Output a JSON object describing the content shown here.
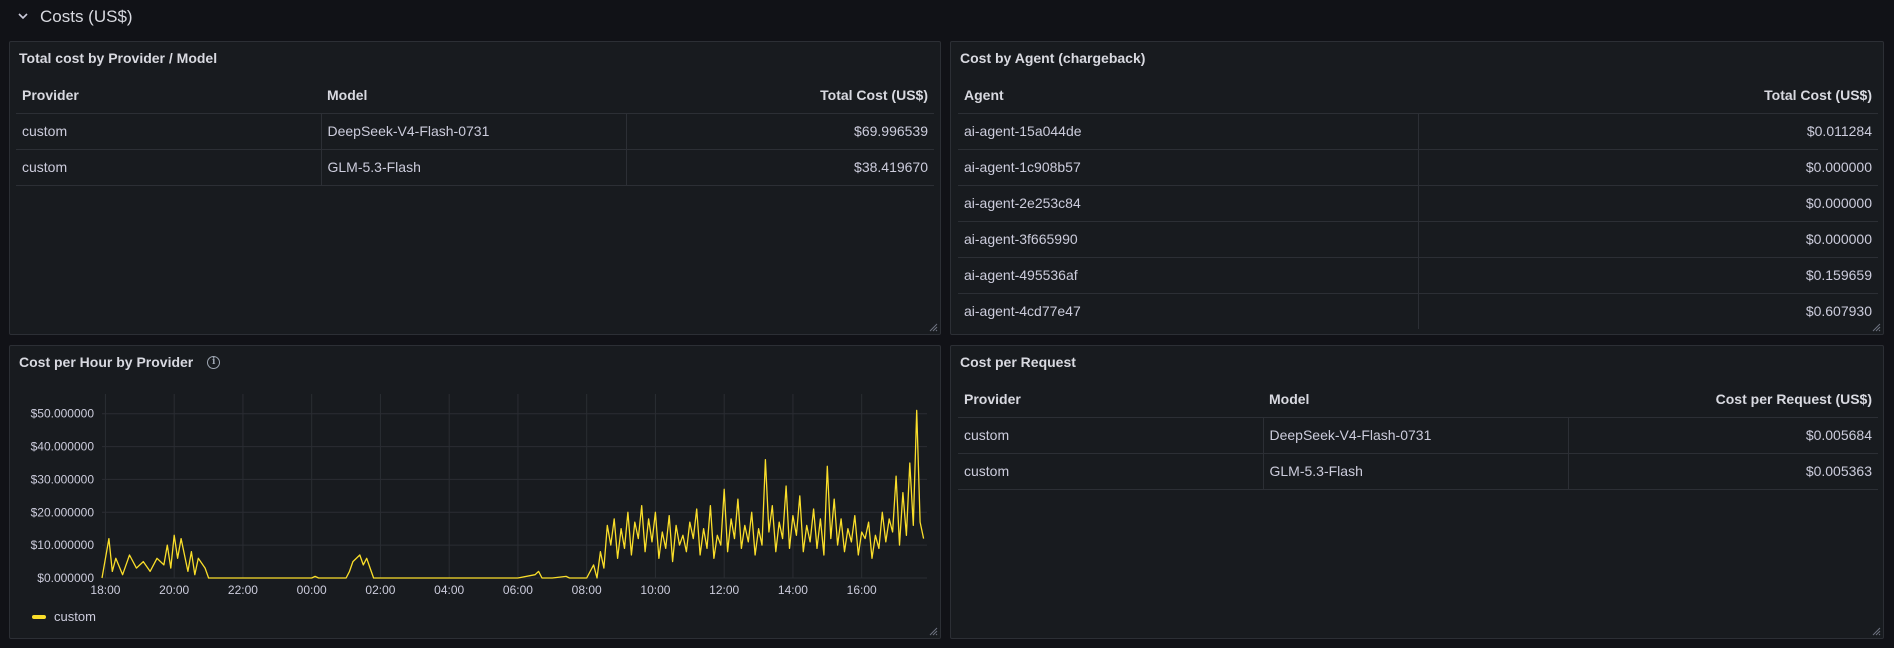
{
  "row": {
    "title": "Costs (US$)"
  },
  "colors": {
    "series": "#fade2a",
    "panel_bg": "#181b1f",
    "page_bg": "#111217"
  },
  "icons": {
    "row_toggle": "chevron-down-icon",
    "info": "info-icon",
    "resize": "resize-handle-icon"
  },
  "cost_provider_model": {
    "title": "Total cost by Provider / Model",
    "headers": [
      "Provider",
      "Model",
      "Total Cost (US$)"
    ],
    "rows": [
      [
        "custom",
        "DeepSeek-V4-Flash-0731",
        "$69.996539"
      ],
      [
        "custom",
        "GLM-5.3-Flash",
        "$38.419670"
      ]
    ]
  },
  "cost_agent": {
    "title": "Cost by Agent (chargeback)",
    "headers": [
      "Agent",
      "Total Cost (US$)"
    ],
    "rows": [
      [
        "ai-agent-15a044de",
        "$0.011284"
      ],
      [
        "ai-agent-1c908b57",
        "$0.000000"
      ],
      [
        "ai-agent-2e253c84",
        "$0.000000"
      ],
      [
        "ai-agent-3f665990",
        "$0.000000"
      ],
      [
        "ai-agent-495536af",
        "$0.159659"
      ],
      [
        "ai-agent-4cd77e47",
        "$0.607930"
      ]
    ]
  },
  "cost_per_hour": {
    "title": "Cost per Hour by Provider",
    "legend": "custom"
  },
  "cost_per_request": {
    "title": "Cost per Request",
    "headers": [
      "Provider",
      "Model",
      "Cost per Request (US$)"
    ],
    "rows": [
      [
        "custom",
        "DeepSeek-V4-Flash-0731",
        "$0.005684"
      ],
      [
        "custom",
        "GLM-5.3-Flash",
        "$0.005363"
      ]
    ]
  },
  "chart_data": {
    "type": "line",
    "title": "Cost per Hour by Provider",
    "xlabel": "",
    "ylabel": "",
    "x_ticks": [
      "18:00",
      "20:00",
      "22:00",
      "00:00",
      "02:00",
      "04:00",
      "06:00",
      "08:00",
      "10:00",
      "12:00",
      "14:00",
      "16:00"
    ],
    "y_ticks": [
      "$0.000000",
      "$10.000000",
      "$20.000000",
      "$30.000000",
      "$40.000000",
      "$50.000000"
    ],
    "xlim": [
      17.9,
      41.9
    ],
    "ylim": [
      0,
      56
    ],
    "grid": true,
    "legend_position": "bottom-left",
    "series": [
      {
        "name": "custom",
        "color": "#fade2a",
        "x": [
          17.9,
          18.1,
          18.2,
          18.3,
          18.5,
          18.7,
          18.9,
          19.1,
          19.3,
          19.5,
          19.7,
          19.8,
          19.9,
          20.0,
          20.1,
          20.2,
          20.4,
          20.5,
          20.6,
          20.7,
          20.9,
          21.0,
          21.5,
          22.0,
          23.0,
          24.0,
          24.1,
          24.2,
          25.0,
          25.1,
          25.2,
          25.4,
          25.5,
          25.6,
          25.7,
          25.8,
          26.0,
          27.0,
          28.0,
          29.0,
          30.0,
          30.5,
          30.6,
          30.7,
          31.0,
          31.4,
          31.5,
          31.6,
          32.0,
          32.2,
          32.3,
          32.4,
          32.5,
          32.6,
          32.7,
          32.8,
          32.9,
          33.0,
          33.1,
          33.2,
          33.3,
          33.4,
          33.5,
          33.6,
          33.7,
          33.8,
          33.9,
          34.0,
          34.1,
          34.2,
          34.3,
          34.4,
          34.5,
          34.6,
          34.7,
          34.8,
          34.9,
          35.0,
          35.1,
          35.2,
          35.3,
          35.4,
          35.5,
          35.6,
          35.7,
          35.8,
          35.9,
          36.0,
          36.1,
          36.2,
          36.3,
          36.4,
          36.5,
          36.6,
          36.7,
          36.8,
          36.9,
          37.0,
          37.1,
          37.2,
          37.3,
          37.4,
          37.5,
          37.6,
          37.7,
          37.8,
          37.9,
          38.0,
          38.1,
          38.2,
          38.3,
          38.4,
          38.5,
          38.6,
          38.7,
          38.8,
          38.9,
          39.0,
          39.1,
          39.2,
          39.3,
          39.4,
          39.5,
          39.6,
          39.7,
          39.8,
          39.9,
          40.0,
          40.1,
          40.2,
          40.3,
          40.4,
          40.5,
          40.6,
          40.7,
          40.8,
          40.9,
          41.0,
          41.1,
          41.2,
          41.3,
          41.4,
          41.5,
          41.6,
          41.7,
          41.8
        ],
        "values": [
          0,
          12,
          2,
          6,
          1,
          7,
          3,
          5,
          2,
          6,
          4,
          10,
          3,
          13,
          6,
          12,
          2,
          8,
          1,
          6,
          3,
          0,
          0,
          0,
          0,
          0,
          0.5,
          0,
          0,
          2,
          5,
          7,
          4,
          6,
          3,
          0,
          0,
          0,
          0,
          0,
          0,
          1,
          2,
          0,
          0,
          0.5,
          0,
          0,
          0,
          4,
          0,
          8,
          3,
          16,
          10,
          18,
          6,
          15,
          9,
          20,
          7,
          17,
          12,
          22,
          8,
          18,
          11,
          20,
          6,
          14,
          9,
          19,
          5,
          16,
          10,
          13,
          8,
          17,
          12,
          21,
          7,
          15,
          9,
          22,
          6,
          13,
          10,
          27,
          8,
          18,
          12,
          24,
          9,
          16,
          11,
          20,
          7,
          15,
          10,
          36,
          14,
          22,
          8,
          17,
          12,
          28,
          9,
          19,
          13,
          25,
          8,
          16,
          11,
          21,
          9,
          18,
          7,
          34,
          12,
          24,
          10,
          18,
          8,
          15,
          11,
          19,
          7,
          14,
          12,
          17,
          6,
          13,
          9,
          20,
          11,
          18,
          14,
          31,
          10,
          26,
          13,
          35,
          16,
          51,
          17,
          12
        ],
        "note": ""
      }
    ]
  }
}
